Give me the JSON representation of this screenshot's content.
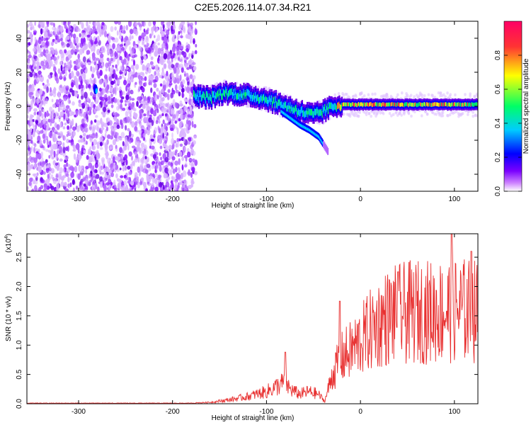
{
  "title": "C2E5.2026.114.07.34.R21",
  "chart_data": [
    {
      "type": "heatmap",
      "title": "C2E5.2026.114.07.34.R21",
      "xlabel": "Height of straight line (km)",
      "ylabel": "Frequency (Hz)",
      "xlim": [
        -355,
        125
      ],
      "ylim": [
        -50,
        50
      ],
      "xticks": [
        -300,
        -200,
        -100,
        0,
        100
      ],
      "xtick_labels": [
        "-300",
        "-200",
        "-100",
        "0",
        "100"
      ],
      "yticks": [
        -40,
        -20,
        0,
        20,
        40
      ],
      "ytick_labels": [
        "-40",
        "-20",
        "0",
        "20",
        "40"
      ],
      "noise_region_x": [
        -355,
        -175
      ],
      "signal_track": [
        {
          "x": -175,
          "y": 6
        },
        {
          "x": -160,
          "y": 5
        },
        {
          "x": -145,
          "y": 8
        },
        {
          "x": -130,
          "y": 7
        },
        {
          "x": -115,
          "y": 6
        },
        {
          "x": -100,
          "y": 4
        },
        {
          "x": -90,
          "y": 2
        },
        {
          "x": -80,
          "y": 0
        },
        {
          "x": -70,
          "y": -2
        },
        {
          "x": -60,
          "y": -4
        },
        {
          "x": -50,
          "y": -5
        },
        {
          "x": -40,
          "y": -3
        },
        {
          "x": -30,
          "y": 0
        },
        {
          "x": -20,
          "y": 1
        },
        {
          "x": 0,
          "y": 1
        },
        {
          "x": 50,
          "y": 1
        },
        {
          "x": 100,
          "y": 1
        },
        {
          "x": 125,
          "y": 1
        }
      ],
      "secondary_track": [
        {
          "x": -85,
          "y": -3
        },
        {
          "x": -75,
          "y": -7
        },
        {
          "x": -65,
          "y": -11
        },
        {
          "x": -55,
          "y": -14
        },
        {
          "x": -45,
          "y": -18
        },
        {
          "x": -35,
          "y": -27
        }
      ],
      "colorbar": {
        "label": "Normalized spectral amplitude",
        "range": [
          0.0,
          1.0
        ],
        "ticks": [
          0.0,
          0.2,
          0.4,
          0.6,
          0.8
        ],
        "tick_labels": [
          "0.0",
          "0.2",
          "0.4",
          "0.6",
          "0.8"
        ],
        "colors": [
          "#ffffff",
          "#cc80ff",
          "#7a00ff",
          "#0000ff",
          "#00ccff",
          "#00ff66",
          "#ffff00",
          "#ff3333",
          "#ff0066"
        ]
      }
    },
    {
      "type": "line",
      "title": "",
      "xlabel": "Height of straight line (km)",
      "ylabel": "SNR (10 * v/v)",
      "scale_label_base": "(x10",
      "scale_label_exp": "4",
      "scale_label_close": ")",
      "xlim": [
        -355,
        125
      ],
      "ylim": [
        0,
        2.9
      ],
      "xticks": [
        -300,
        -200,
        -100,
        0,
        100
      ],
      "xtick_labels": [
        "-300",
        "-200",
        "-100",
        "0",
        "100"
      ],
      "yticks": [
        0.0,
        0.5,
        1.0,
        1.5,
        2.0,
        2.5
      ],
      "ytick_labels": [
        "0.0",
        "0.5",
        "1.0",
        "1.5",
        "2.0",
        "2.5"
      ],
      "color": "#e83030",
      "envelope": [
        {
          "x": -355,
          "y": 0.01
        },
        {
          "x": -180,
          "y": 0.01
        },
        {
          "x": -160,
          "y": 0.03
        },
        {
          "x": -140,
          "y": 0.08
        },
        {
          "x": -120,
          "y": 0.15
        },
        {
          "x": -100,
          "y": 0.25
        },
        {
          "x": -90,
          "y": 0.35
        },
        {
          "x": -80,
          "y": 0.45
        },
        {
          "x": -75,
          "y": 0.3
        },
        {
          "x": -65,
          "y": 0.2
        },
        {
          "x": -55,
          "y": 0.25
        },
        {
          "x": -45,
          "y": 0.2
        },
        {
          "x": -38,
          "y": 0.05
        },
        {
          "x": -30,
          "y": 0.6
        },
        {
          "x": -20,
          "y": 0.95
        },
        {
          "x": -10,
          "y": 1.1
        },
        {
          "x": 0,
          "y": 1.3
        },
        {
          "x": 10,
          "y": 1.5
        },
        {
          "x": 25,
          "y": 1.75
        },
        {
          "x": 40,
          "y": 1.85
        },
        {
          "x": 60,
          "y": 1.9
        },
        {
          "x": 80,
          "y": 1.9
        },
        {
          "x": 100,
          "y": 1.95
        },
        {
          "x": 125,
          "y": 1.9
        }
      ],
      "peaks": [
        {
          "x": -80,
          "y": 0.88
        },
        {
          "x": -22,
          "y": 1.75
        },
        {
          "x": 40,
          "y": 2.25
        },
        {
          "x": 97,
          "y": 2.9
        },
        {
          "x": 118,
          "y": 2.6
        }
      ]
    }
  ]
}
